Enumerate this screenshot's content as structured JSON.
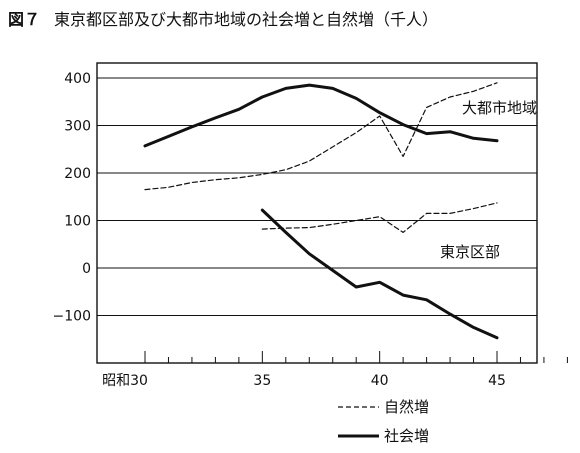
{
  "figure": {
    "number": "図７",
    "title": "東京都区部及び大都市地域の社会増と自然増（千人）"
  },
  "chart_data": {
    "type": "line",
    "x_tick_labels": [
      "昭和30",
      "35",
      "40",
      "45"
    ],
    "y_tick_labels": [
      "400",
      "300",
      "200",
      "100",
      "0",
      "−100"
    ],
    "xlim": [
      30,
      48
    ],
    "ylim": [
      -150,
      410
    ],
    "grid": "horizontal",
    "region_labels": [
      "大都市地域",
      "東京区部"
    ],
    "legend": [
      {
        "label": "自然増",
        "style": "dashed"
      },
      {
        "label": "社会増",
        "style": "solid"
      }
    ],
    "series": [
      {
        "region": "大都市地域",
        "kind": "社会増",
        "style": "solid",
        "x": [
          30,
          31,
          32,
          33,
          34,
          35,
          36,
          37,
          38,
          39,
          40,
          41,
          42,
          43,
          44,
          45
        ],
        "y": [
          257,
          277,
          297,
          316,
          334,
          360,
          378,
          385,
          378,
          357,
          327,
          302,
          283,
          287,
          273,
          268
        ]
      },
      {
        "region": "大都市地域",
        "kind": "自然増",
        "style": "dashed",
        "x": [
          30,
          31,
          32,
          33,
          34,
          35,
          36,
          37,
          38,
          39,
          40,
          41,
          42,
          43,
          44,
          45
        ],
        "y": [
          165,
          170,
          180,
          186,
          190,
          197,
          207,
          225,
          255,
          285,
          320,
          235,
          338,
          360,
          372,
          390
        ]
      },
      {
        "region": "東京区部",
        "kind": "自然増",
        "style": "dashed",
        "x": [
          35,
          36,
          37,
          38,
          39,
          40,
          41,
          42,
          43,
          44,
          45
        ],
        "y": [
          82,
          84,
          85,
          92,
          100,
          108,
          75,
          115,
          115,
          125,
          137
        ]
      },
      {
        "region": "東京区部",
        "kind": "社会増",
        "style": "solid",
        "x": [
          35,
          36,
          37,
          38,
          39,
          40,
          41,
          42,
          43,
          44,
          45
        ],
        "y": [
          122,
          75,
          30,
          -5,
          -40,
          -30,
          -57,
          -67,
          -97,
          -125,
          -147
        ]
      }
    ]
  }
}
